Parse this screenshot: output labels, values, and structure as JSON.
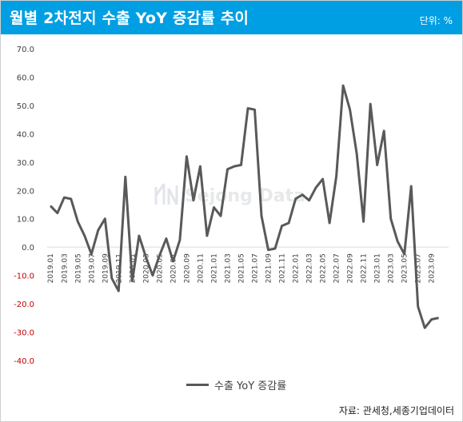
{
  "header": {
    "title": "월별 2차전지 수출 YoY 증감률 추이",
    "unit": "단위: %"
  },
  "watermark": {
    "text": "Sejong Data"
  },
  "source": "자료: 관세청,세종기업데이터",
  "colors": {
    "header_bg": "#009fe3",
    "line": "#595959",
    "negative_tick": "#c00000",
    "grid": "#d9d9d9"
  },
  "chart_data": {
    "type": "line",
    "title": "월별 2차전지 수출 YoY 증감률 추이",
    "ylim": [
      -40,
      70
    ],
    "yticks": [
      "70.0",
      "60.0",
      "50.0",
      "40.0",
      "30.0",
      "20.0",
      "10.0",
      "0.0",
      "-10.0",
      "-20.0",
      "-30.0",
      "-40.0"
    ],
    "x": [
      "2019.01",
      "2019.02",
      "2019.03",
      "2019.04",
      "2019.05",
      "2019.06",
      "2019.07",
      "2019.08",
      "2019.09",
      "2019.10",
      "2019.11",
      "2019.12",
      "2020.01",
      "2020.02",
      "2020.03",
      "2020.04",
      "2020.05",
      "2020.06",
      "2020.07",
      "2020.08",
      "2020.09",
      "2020.10",
      "2020.11",
      "2020.12",
      "2021.01",
      "2021.02",
      "2021.03",
      "2021.04",
      "2021.05",
      "2021.06",
      "2021.07",
      "2021.08",
      "2021.09",
      "2021.10",
      "2021.11",
      "2021.12",
      "2022.01",
      "2022.02",
      "2022.03",
      "2022.04",
      "2022.05",
      "2022.06",
      "2022.07",
      "2022.08",
      "2022.09",
      "2022.10",
      "2022.11",
      "2022.12",
      "2023.01",
      "2023.02",
      "2023.03",
      "2023.04",
      "2023.05",
      "2023.06",
      "2023.07",
      "2023.08",
      "2023.09",
      "2023.10",
      "2023.11"
    ],
    "xtick_labels": [
      "2019.01",
      "2019.03",
      "2019.05",
      "2019.07",
      "2019.09",
      "2019.11",
      "2020.01",
      "2020.03",
      "2020.05",
      "2020.07",
      "2020.09",
      "2020.11",
      "2021.01",
      "2021.03",
      "2021.05",
      "2021.07",
      "2021.09",
      "2021.11",
      "2022.01",
      "2022.03",
      "2022.05",
      "2022.07",
      "2022.09",
      "2022.11",
      "2023.01",
      "2023.03",
      "2023.05",
      "2023.07",
      "2023.09"
    ],
    "series": [
      {
        "name": "수출 YoY 증감률",
        "values": [
          14.5,
          12.0,
          17.5,
          17.0,
          9.0,
          4.0,
          -2.5,
          6.0,
          10.0,
          -11.0,
          -15.5,
          24.8,
          -12.0,
          4.0,
          -3.5,
          -10.0,
          -3.0,
          3.0,
          -5.0,
          2.5,
          32.0,
          16.5,
          28.5,
          4.0,
          14.0,
          11.0,
          27.5,
          28.5,
          29.0,
          49.0,
          48.5,
          11.0,
          -1.0,
          -0.5,
          7.5,
          8.5,
          17.0,
          18.5,
          16.5,
          21.0,
          24.0,
          8.5,
          25.0,
          57.0,
          48.5,
          33.0,
          9.0,
          50.5,
          29.0,
          41.0,
          10.0,
          2.0,
          -2.5,
          21.5,
          -21.0,
          -28.5,
          -25.5,
          -25.0,
          null
        ]
      }
    ],
    "legend": "bottom-center",
    "grid": false
  }
}
